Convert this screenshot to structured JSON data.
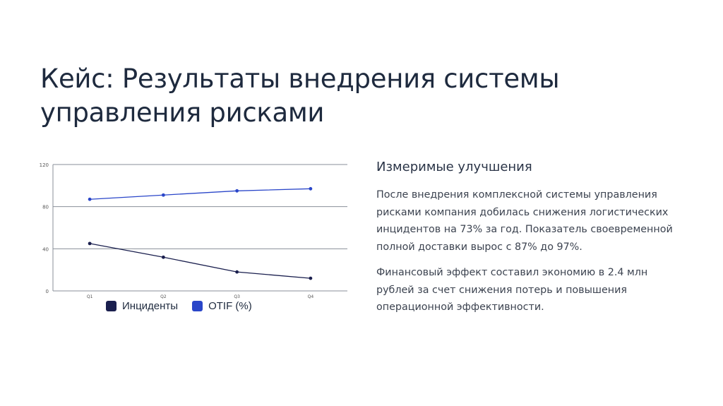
{
  "slide": {
    "title_line1": "Кейс: Результаты внедрения системы",
    "title_line2": "управления рисками"
  },
  "panel": {
    "heading": "Измеримые улучшения",
    "paragraph1": "После внедрения комплексной системы управления рисками компания добилась снижения логистических инцидентов на 73% за год. Показатель своевременной полной доставки вырос с 87% до 97%.",
    "paragraph2": "Финансовый эффект составил экономию в 2.4 млн рублей за счет снижения потерь и повышения операционной эффективности."
  },
  "chart_data": {
    "type": "line",
    "categories": [
      "Q1",
      "Q2",
      "Q3",
      "Q4"
    ],
    "series": [
      {
        "name": "Инциденты",
        "values": [
          45,
          32,
          18,
          12
        ],
        "color": "#1a1f4e"
      },
      {
        "name": "OTIF (%)",
        "values": [
          87,
          91,
          95,
          97
        ],
        "color": "#2a46c9"
      }
    ],
    "ylim": [
      0,
      120
    ],
    "yticks": [
      "0",
      "40",
      "80",
      "120"
    ],
    "grid": true,
    "legend": "bottom"
  }
}
